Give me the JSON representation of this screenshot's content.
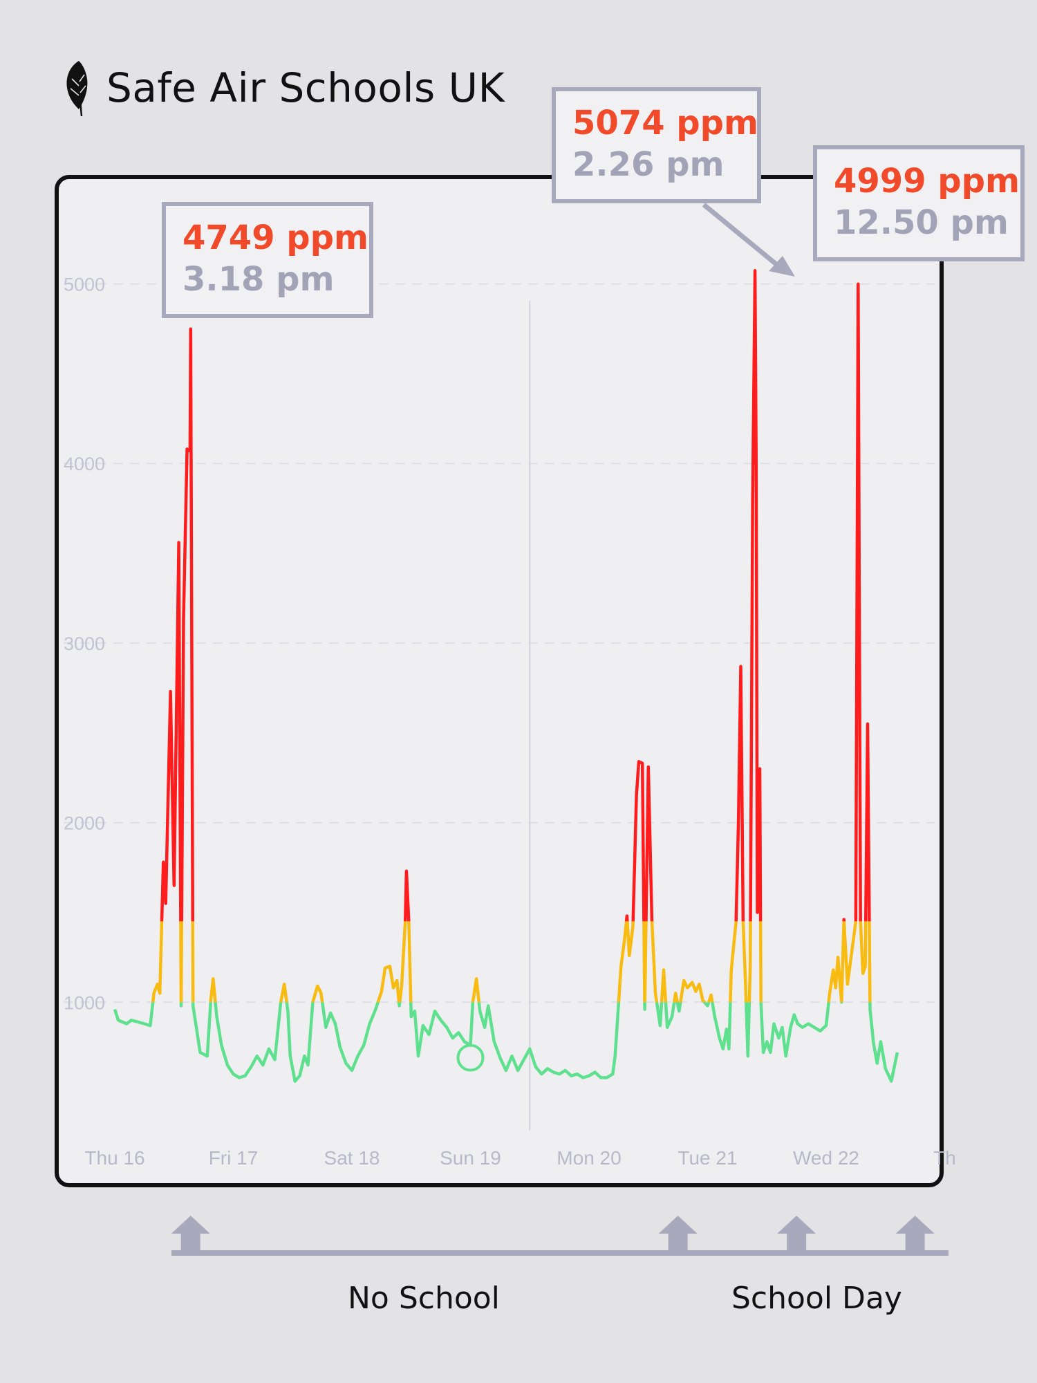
{
  "brand": {
    "title": "Safe Air Schools UK",
    "logo_icon": "feather-icon"
  },
  "callouts": [
    {
      "ppm": "4749 ppm",
      "time": "3.18 pm"
    },
    {
      "ppm": "5074 ppm",
      "time": "2.26 pm"
    },
    {
      "ppm": "4999 ppm",
      "time": "12.50 pm"
    }
  ],
  "legend": {
    "no_school": "No School",
    "school_day": "School Day"
  },
  "colors": {
    "good": "#5ee08e",
    "moderate": "#f7bb12",
    "high": "#ff1c1c",
    "callout_ppm": "#f04a2a",
    "callout_time": "#a3a3b8"
  },
  "chart_data": {
    "type": "line",
    "ylabel": "",
    "ylim": [
      0,
      5000
    ],
    "yticks": [
      1000,
      2000,
      3000,
      4000,
      5000
    ],
    "xlim": [
      0,
      7
    ],
    "xticks": [
      {
        "x": 0,
        "label": "Thu 16"
      },
      {
        "x": 1,
        "label": "Fri 17"
      },
      {
        "x": 2,
        "label": "Sat 18"
      },
      {
        "x": 3,
        "label": "Sun 19"
      },
      {
        "x": 4,
        "label": "Mon 20"
      },
      {
        "x": 5,
        "label": "Tue 21"
      },
      {
        "x": 6,
        "label": "Wed 22"
      },
      {
        "x": 7,
        "label": "Th"
      }
    ],
    "color_thresholds": {
      "moderate_above": 1000,
      "high_above": 1450
    },
    "series": [
      {
        "points": [
          [
            0,
            960
          ],
          [
            0.03,
            900
          ],
          [
            0.1,
            880
          ],
          [
            0.14,
            900
          ],
          [
            0.25,
            880
          ],
          [
            0.3,
            870
          ],
          [
            0.33,
            1050
          ],
          [
            0.36,
            1100
          ],
          [
            0.38,
            1050
          ],
          [
            0.41,
            1780
          ],
          [
            0.43,
            1550
          ],
          [
            0.47,
            2730
          ],
          [
            0.5,
            1650
          ],
          [
            0.54,
            3560
          ],
          [
            0.56,
            980
          ],
          [
            0.58,
            3140
          ],
          [
            0.61,
            4080
          ],
          [
            0.635,
            4070
          ],
          [
            0.64,
            4749
          ],
          [
            0.66,
            980
          ],
          [
            0.72,
            720
          ],
          [
            0.78,
            700
          ],
          [
            0.81,
            1010
          ],
          [
            0.83,
            1130
          ],
          [
            0.86,
            920
          ],
          [
            0.9,
            760
          ],
          [
            0.95,
            650
          ],
          [
            1.0,
            600
          ],
          [
            1.05,
            580
          ],
          [
            1.1,
            590
          ],
          [
            1.15,
            640
          ],
          [
            1.2,
            700
          ],
          [
            1.25,
            650
          ],
          [
            1.3,
            740
          ],
          [
            1.35,
            680
          ],
          [
            1.4,
            1000
          ],
          [
            1.43,
            1100
          ],
          [
            1.46,
            950
          ],
          [
            1.48,
            700
          ],
          [
            1.52,
            560
          ],
          [
            1.56,
            590
          ],
          [
            1.6,
            700
          ],
          [
            1.63,
            650
          ],
          [
            1.67,
            1000
          ],
          [
            1.71,
            1090
          ],
          [
            1.74,
            1050
          ],
          [
            1.78,
            860
          ],
          [
            1.82,
            940
          ],
          [
            1.86,
            880
          ],
          [
            1.9,
            750
          ],
          [
            1.95,
            660
          ],
          [
            2.0,
            620
          ],
          [
            2.05,
            700
          ],
          [
            2.1,
            760
          ],
          [
            2.15,
            880
          ],
          [
            2.2,
            960
          ],
          [
            2.25,
            1060
          ],
          [
            2.28,
            1190
          ],
          [
            2.32,
            1200
          ],
          [
            2.35,
            1080
          ],
          [
            2.38,
            1120
          ],
          [
            2.4,
            980
          ],
          [
            2.42,
            1090
          ],
          [
            2.45,
            1450
          ],
          [
            2.46,
            1730
          ],
          [
            2.48,
            1450
          ],
          [
            2.5,
            920
          ],
          [
            2.53,
            950
          ],
          [
            2.56,
            700
          ],
          [
            2.6,
            870
          ],
          [
            2.65,
            820
          ],
          [
            2.7,
            950
          ],
          [
            2.75,
            900
          ],
          [
            2.8,
            860
          ],
          [
            2.85,
            800
          ],
          [
            2.9,
            830
          ],
          [
            2.95,
            780
          ],
          [
            3.0,
            760
          ],
          [
            3.02,
            1000
          ],
          [
            3.05,
            1130
          ],
          [
            3.08,
            950
          ],
          [
            3.12,
            860
          ],
          [
            3.15,
            980
          ],
          [
            3.2,
            780
          ],
          [
            3.25,
            690
          ],
          [
            3.3,
            620
          ],
          [
            3.35,
            700
          ],
          [
            3.4,
            620
          ],
          [
            3.45,
            680
          ],
          [
            3.5,
            740
          ],
          [
            3.55,
            640
          ],
          [
            3.6,
            600
          ],
          [
            3.65,
            630
          ],
          [
            3.7,
            610
          ],
          [
            3.75,
            600
          ],
          [
            3.8,
            620
          ],
          [
            3.85,
            590
          ],
          [
            3.9,
            600
          ],
          [
            3.95,
            580
          ],
          [
            4.0,
            590
          ],
          [
            4.05,
            610
          ],
          [
            4.1,
            580
          ],
          [
            4.15,
            580
          ],
          [
            4.2,
            600
          ],
          [
            4.22,
            700
          ],
          [
            4.25,
            1000
          ],
          [
            4.27,
            1200
          ],
          [
            4.3,
            1350
          ],
          [
            4.32,
            1480
          ],
          [
            4.34,
            1260
          ],
          [
            4.37,
            1420
          ],
          [
            4.4,
            2150
          ],
          [
            4.42,
            2340
          ],
          [
            4.45,
            2330
          ],
          [
            4.47,
            960
          ],
          [
            4.5,
            2310
          ],
          [
            4.53,
            1460
          ],
          [
            4.56,
            1050
          ],
          [
            4.6,
            870
          ],
          [
            4.63,
            1180
          ],
          [
            4.66,
            860
          ],
          [
            4.7,
            920
          ],
          [
            4.73,
            1050
          ],
          [
            4.76,
            950
          ],
          [
            4.8,
            1120
          ],
          [
            4.83,
            1080
          ],
          [
            4.87,
            1110
          ],
          [
            4.9,
            1060
          ],
          [
            4.93,
            1100
          ],
          [
            4.96,
            1010
          ],
          [
            5.0,
            980
          ],
          [
            5.03,
            1040
          ],
          [
            5.06,
            920
          ],
          [
            5.1,
            800
          ],
          [
            5.13,
            740
          ],
          [
            5.16,
            850
          ],
          [
            5.18,
            740
          ],
          [
            5.2,
            1180
          ],
          [
            5.24,
            1450
          ],
          [
            5.26,
            2000
          ],
          [
            5.28,
            2870
          ],
          [
            5.3,
            1450
          ],
          [
            5.32,
            1100
          ],
          [
            5.34,
            700
          ],
          [
            5.36,
            1200
          ],
          [
            5.38,
            3800
          ],
          [
            5.4,
            5074
          ],
          [
            5.41,
            4000
          ],
          [
            5.42,
            1500
          ],
          [
            5.44,
            2300
          ],
          [
            5.45,
            1000
          ],
          [
            5.47,
            720
          ],
          [
            5.5,
            780
          ],
          [
            5.53,
            720
          ],
          [
            5.56,
            880
          ],
          [
            5.6,
            800
          ],
          [
            5.63,
            860
          ],
          [
            5.66,
            700
          ],
          [
            5.7,
            860
          ],
          [
            5.73,
            930
          ],
          [
            5.76,
            880
          ],
          [
            5.8,
            860
          ],
          [
            5.85,
            880
          ],
          [
            5.9,
            860
          ],
          [
            5.95,
            840
          ],
          [
            6.0,
            870
          ],
          [
            6.03,
            1050
          ],
          [
            6.06,
            1180
          ],
          [
            6.08,
            1080
          ],
          [
            6.1,
            1250
          ],
          [
            6.13,
            1000
          ],
          [
            6.15,
            1460
          ],
          [
            6.18,
            1100
          ],
          [
            6.21,
            1250
          ],
          [
            6.24,
            1400
          ],
          [
            6.25,
            1450
          ],
          [
            6.27,
            4999
          ],
          [
            6.29,
            1450
          ],
          [
            6.31,
            1160
          ],
          [
            6.33,
            1200
          ],
          [
            6.35,
            2550
          ],
          [
            6.37,
            960
          ],
          [
            6.4,
            770
          ],
          [
            6.43,
            660
          ],
          [
            6.46,
            780
          ],
          [
            6.5,
            630
          ],
          [
            6.55,
            560
          ],
          [
            6.6,
            720
          ]
        ]
      }
    ],
    "annotations": [
      {
        "label": "4749 ppm",
        "x": 0.64,
        "y": 4749
      },
      {
        "label": "5074 ppm",
        "x": 5.4,
        "y": 5074
      },
      {
        "label": "4999 ppm",
        "x": 6.27,
        "y": 4999
      }
    ],
    "markers": [
      {
        "x": 3.0,
        "y": 760,
        "shape": "circle"
      }
    ],
    "divider_x": 3.5,
    "school_day_arrows": [
      0.64,
      4.75,
      5.75,
      6.75
    ],
    "grid": true
  }
}
